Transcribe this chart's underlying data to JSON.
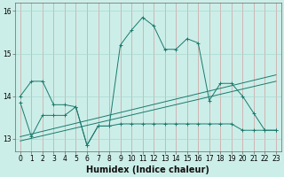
{
  "xlabel": "Humidex (Indice chaleur)",
  "background_color": "#cceee8",
  "line_color": "#1a7a6e",
  "xlim": [
    -0.5,
    23.5
  ],
  "ylim": [
    12.7,
    16.2
  ],
  "yticks": [
    13,
    14,
    15,
    16
  ],
  "xticks": [
    0,
    1,
    2,
    3,
    4,
    5,
    6,
    7,
    8,
    9,
    10,
    11,
    12,
    13,
    14,
    15,
    16,
    17,
    18,
    19,
    20,
    21,
    22,
    23
  ],
  "series1_x": [
    0,
    1,
    2,
    3,
    4,
    5,
    6,
    7,
    8,
    9,
    10,
    11,
    12,
    13,
    14,
    15,
    16,
    17,
    18,
    19,
    20,
    21,
    22,
    23
  ],
  "series1_y": [
    14.0,
    14.35,
    14.35,
    13.8,
    13.8,
    13.75,
    12.85,
    13.3,
    13.3,
    15.2,
    15.55,
    15.85,
    15.65,
    15.1,
    15.1,
    15.35,
    15.25,
    13.9,
    14.3,
    14.3,
    14.0,
    13.6,
    13.2,
    13.2
  ],
  "series2_x": [
    0,
    1,
    2,
    3,
    4,
    5,
    6,
    7,
    8,
    9,
    10,
    11,
    12,
    13,
    14,
    15,
    16,
    17,
    18,
    19,
    20,
    21,
    22,
    23
  ],
  "series2_y": [
    13.85,
    13.05,
    13.55,
    13.55,
    13.55,
    13.75,
    12.85,
    13.3,
    13.3,
    13.35,
    13.35,
    13.35,
    13.35,
    13.35,
    13.35,
    13.35,
    13.35,
    13.35,
    13.35,
    13.35,
    13.2,
    13.2,
    13.2,
    13.2
  ],
  "series3_x": [
    0,
    23
  ],
  "series3_y": [
    12.95,
    14.35
  ],
  "series4_x": [
    0,
    23
  ],
  "series4_y": [
    13.05,
    14.5
  ],
  "grid_color": "#aad8d0",
  "spine_color": "#666666",
  "xlabel_fontsize": 7,
  "tick_fontsize": 5.5
}
